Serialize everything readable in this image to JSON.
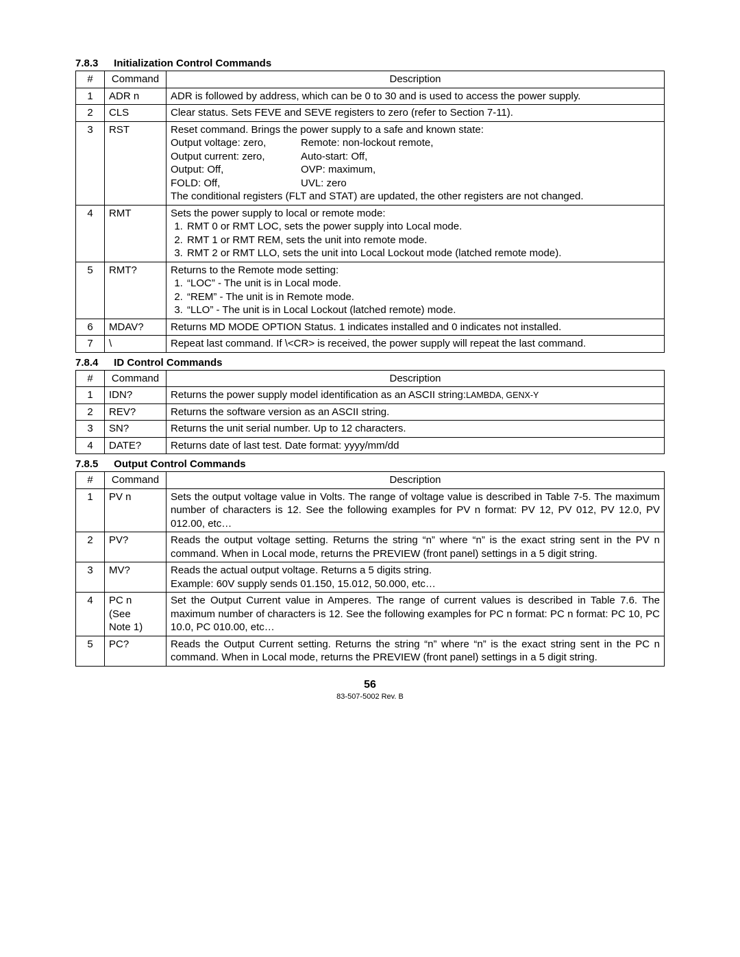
{
  "sections": {
    "s783": {
      "num": "7.8.3",
      "title": "Initialization Control Commands"
    },
    "s784": {
      "num": "7.8.4",
      "title": "ID Control Commands"
    },
    "s785": {
      "num": "7.8.5",
      "title": "Output Control Commands"
    }
  },
  "headers": {
    "num": "#",
    "cmd": "Command",
    "desc": "Description"
  },
  "t783": {
    "r1": {
      "n": "1",
      "cmd": "ADR n",
      "desc": "ADR is followed by address, which can be 0 to 30 and is used to access the power supply."
    },
    "r2": {
      "n": "2",
      "cmd": "CLS",
      "desc": "Clear status. Sets FEVE and SEVE registers to zero (refer to Section 7-11)."
    },
    "r3": {
      "n": "3",
      "cmd": "RST",
      "lead": "Reset command. Brings the power supply to a safe and known state:",
      "a1l": "Output voltage: zero,",
      "a1r": "Remote: non-lockout remote,",
      "a2l": "Output current: zero,",
      "a2r": "Auto-start: Off,",
      "a3l": "Output: Off,",
      "a3r": "OVP: maximum,",
      "a4l": "FOLD: Off,",
      "a4r": "UVL: zero",
      "tail": "The conditional registers (FLT and STAT) are updated, the other registers are not changed."
    },
    "r4": {
      "n": "4",
      "cmd": "RMT",
      "lead": "Sets the power supply to local or remote mode:",
      "li1": "RMT 0 or RMT LOC, sets the power supply into Local mode.",
      "li2": "RMT 1 or RMT REM, sets the unit into remote mode.",
      "li3": "RMT 2 or RMT LLO, sets the unit into Local Lockout mode (latched remote mode)."
    },
    "r5": {
      "n": "5",
      "cmd": "RMT?",
      "lead": "Returns to the Remote mode setting:",
      "li1": "“LOC” - The unit is in Local mode.",
      "li2": "“REM” - The unit is in Remote mode.",
      "li3": "“LLO” - The unit is in Local Lockout (latched remote) mode."
    },
    "r6": {
      "n": "6",
      "cmd": "MDAV?",
      "desc": "Returns MD MODE OPTION Status. 1 indicates installed and 0 indicates not installed."
    },
    "r7": {
      "n": "7",
      "cmd": "\\",
      "desc": "Repeat last command. If \\<CR> is received, the power supply will repeat the last command."
    }
  },
  "t784": {
    "r1": {
      "n": "1",
      "cmd": "IDN?",
      "p1": "Returns the power supply model identification as an ASCII string:",
      "p2": "LAMBDA, GENX-Y"
    },
    "r2": {
      "n": "2",
      "cmd": "REV?",
      "desc": "Returns the software version as an ASCII string."
    },
    "r3": {
      "n": "3",
      "cmd": "SN?",
      "desc": "Returns the unit serial number. Up to 12 characters."
    },
    "r4": {
      "n": "4",
      "cmd": "DATE?",
      "desc": "Returns date of last test. Date format: yyyy/mm/dd"
    }
  },
  "t785": {
    "r1": {
      "n": "1",
      "cmd": "PV n",
      "desc": "Sets the output voltage value in Volts. The range of voltage value is described in Table 7-5. The maximum number of characters is 12. See the following examples for PV n format: PV 12, PV 012, PV 12.0, PV 012.00, etc…"
    },
    "r2": {
      "n": "2",
      "cmd": "PV?",
      "desc": "Reads the output voltage setting. Returns the string “n” where “n” is the exact string sent in the PV n command. When in Local mode, returns the PREVIEW (front panel) settings in a 5 digit string."
    },
    "r3": {
      "n": "3",
      "cmd": "MV?",
      "l1": "Reads the actual output voltage. Returns a 5 digits string.",
      "l2": "Example: 60V supply sends 01.150, 15.012, 50.000, etc…"
    },
    "r4": {
      "n": "4",
      "cmd1": "PC n",
      "cmd2": "(See",
      "cmd3": "Note 1)",
      "desc": "Set the Output Current value in Amperes. The range of current values is described in Table 7.6. The maximum number of characters is 12. See the following examples for PC n format: PC n format: PC 10, PC 10.0, PC 010.00, etc…"
    },
    "r5": {
      "n": "5",
      "cmd": "PC?",
      "desc": "Reads the Output Current setting. Returns the string “n” where “n” is the exact string sent in the PC n command. When in Local mode, returns the PREVIEW (front panel) settings in a 5 digit string."
    }
  },
  "footer": {
    "page": "56",
    "rev": "83-507-5002 Rev. B"
  }
}
